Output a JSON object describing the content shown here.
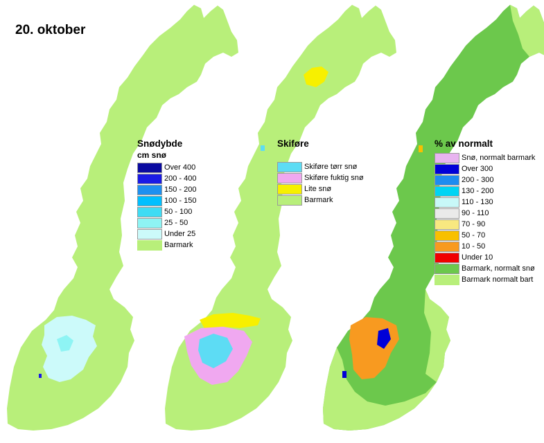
{
  "date": "20. oktober",
  "maps": [
    {
      "name": "snow-depth",
      "title": "Snødybde",
      "subtitle": "cm snø",
      "legend": [
        {
          "label": "Over 400",
          "color": "#0a0aa0"
        },
        {
          "label": "200 - 400",
          "color": "#1a1ae6"
        },
        {
          "label": "150 - 200",
          "color": "#1e90f0"
        },
        {
          "label": "100 - 150",
          "color": "#00bfff"
        },
        {
          "label": "50 - 100",
          "color": "#3fdcf4"
        },
        {
          "label": "25 - 50",
          "color": "#8ef4f4"
        },
        {
          "label": "Under 25",
          "color": "#ccfafa"
        },
        {
          "label": "Barmark",
          "color": "#b8ef7a"
        }
      ]
    },
    {
      "name": "ski-conditions",
      "title": "Skiføre",
      "legend": [
        {
          "label": "Skiføre tørr snø",
          "color": "#5ddcf4"
        },
        {
          "label": "Skiføre fuktig snø",
          "color": "#f0a8f0"
        },
        {
          "label": "Lite snø",
          "color": "#f7f000"
        },
        {
          "label": "Barmark",
          "color": "#b8ef7a"
        }
      ]
    },
    {
      "name": "percent-of-normal",
      "title": "% av normalt",
      "legend": [
        {
          "label": "Snø, normalt barmark",
          "color": "#e8b4f0"
        },
        {
          "label": "Over 300",
          "color": "#0000d8"
        },
        {
          "label": "200 - 300",
          "color": "#1e8cf0"
        },
        {
          "label": "130 - 200",
          "color": "#00d4f4"
        },
        {
          "label": "110 - 130",
          "color": "#c8f8f8"
        },
        {
          "label": "90 - 110",
          "color": "#eaeaea"
        },
        {
          "label": "70 - 90",
          "color": "#f8e880"
        },
        {
          "label": "50 - 70",
          "color": "#f8c000"
        },
        {
          "label": "10 - 50",
          "color": "#f89a20"
        },
        {
          "label": "Under 10",
          "color": "#f00000"
        },
        {
          "label": "Barmark, normalt snø",
          "color": "#6cc84c"
        },
        {
          "label": "Barmark normalt bart",
          "color": "#b8ef7a"
        }
      ]
    }
  ],
  "colors": {
    "land": "#b8ef7a",
    "land_darker": "#6cc84c",
    "snow_light": "#ccfafa",
    "ski_dry": "#5ddcf4",
    "ski_wet": "#f0a8f0",
    "little_snow": "#f7f000",
    "orange": "#f89a20",
    "dark_blue": "#0000d8"
  }
}
